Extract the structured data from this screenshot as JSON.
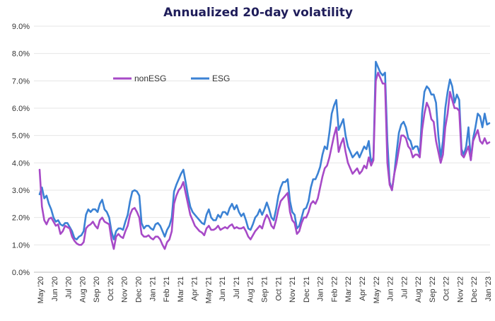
{
  "chart_data": {
    "type": "line",
    "title": "Annualized 20-day volatility",
    "xlabel": "",
    "ylabel": "",
    "ylim": [
      0,
      9
    ],
    "y_ticks": [
      "0.0%",
      "1.0%",
      "2.0%",
      "3.0%",
      "4.0%",
      "5.0%",
      "6.0%",
      "7.0%",
      "8.0%",
      "9.0%"
    ],
    "x_ticks": [
      "May '20",
      "Jun '20",
      "Jul '20",
      "Aug '20",
      "Sep '20",
      "Oct '20",
      "Nov '20",
      "Dec '20",
      "Jan '21",
      "Feb '21",
      "Mar '21",
      "Apr '21",
      "May '21",
      "Jun '21",
      "Jul '21",
      "Aug '21",
      "Sep '21",
      "Oct '21",
      "Nov '21",
      "Dec '21",
      "Jan '22",
      "Feb '22",
      "Mar '22",
      "Apr '22",
      "May '22",
      "Jun '22",
      "Jul '22",
      "Aug '22",
      "Sep '22",
      "Oct '22",
      "Nov '22",
      "Dec '22",
      "Jan '23"
    ],
    "grid": "horizontal",
    "legend_position": "upper-left",
    "series": [
      {
        "name": "nonESG",
        "color": "#a74ac7",
        "values": [
          3.75,
          2.4,
          1.9,
          1.75,
          1.95,
          2.0,
          1.85,
          1.7,
          1.75,
          1.4,
          1.5,
          1.7,
          1.65,
          1.6,
          1.3,
          1.15,
          1.05,
          1.0,
          1.0,
          1.1,
          1.6,
          1.7,
          1.75,
          1.85,
          1.7,
          1.6,
          1.9,
          2.0,
          1.85,
          1.8,
          1.75,
          1.2,
          0.85,
          1.3,
          1.4,
          1.3,
          1.25,
          1.5,
          1.7,
          2.1,
          2.3,
          2.35,
          2.2,
          2.0,
          1.4,
          1.3,
          1.3,
          1.35,
          1.25,
          1.2,
          1.3,
          1.3,
          1.2,
          1.0,
          0.85,
          1.1,
          1.2,
          1.5,
          2.5,
          2.8,
          3.0,
          3.1,
          3.3,
          2.9,
          2.5,
          2.1,
          1.9,
          1.7,
          1.6,
          1.5,
          1.45,
          1.35,
          1.6,
          1.7,
          1.55,
          1.55,
          1.6,
          1.7,
          1.55,
          1.6,
          1.65,
          1.6,
          1.7,
          1.75,
          1.6,
          1.65,
          1.6,
          1.6,
          1.65,
          1.5,
          1.3,
          1.2,
          1.35,
          1.5,
          1.6,
          1.7,
          1.6,
          1.9,
          2.1,
          1.95,
          1.7,
          1.6,
          1.9,
          2.3,
          2.6,
          2.7,
          2.8,
          2.9,
          2.2,
          1.9,
          1.8,
          1.4,
          1.5,
          1.8,
          2.0,
          2.0,
          2.2,
          2.5,
          2.6,
          2.5,
          2.7,
          3.1,
          3.5,
          3.8,
          3.9,
          4.2,
          4.6,
          5.0,
          5.3,
          4.4,
          4.7,
          4.9,
          4.4,
          4.0,
          3.8,
          3.6,
          3.7,
          3.8,
          3.6,
          3.7,
          3.9,
          3.8,
          4.2,
          3.9,
          4.1,
          7.0,
          7.3,
          7.1,
          6.9,
          6.9,
          4.0,
          3.2,
          3.0,
          3.6,
          4.0,
          4.5,
          5.0,
          5.0,
          4.9,
          4.6,
          4.5,
          4.2,
          4.3,
          4.3,
          4.2,
          5.2,
          5.8,
          6.2,
          6.0,
          5.6,
          5.5,
          4.8,
          4.4,
          4.0,
          4.3,
          5.3,
          5.8,
          6.6,
          6.3,
          6.0,
          6.0,
          5.9,
          4.3,
          4.2,
          4.4,
          4.6,
          4.1,
          4.8,
          5.0,
          5.2,
          4.8,
          4.7,
          4.9,
          4.7,
          4.75
        ]
      },
      {
        "name": "ESG",
        "color": "#3b82d4",
        "values": [
          2.85,
          3.1,
          2.7,
          2.8,
          2.5,
          2.3,
          2.0,
          1.85,
          1.9,
          1.75,
          1.7,
          1.8,
          1.8,
          1.65,
          1.5,
          1.25,
          1.2,
          1.3,
          1.35,
          1.5,
          2.1,
          2.3,
          2.2,
          2.3,
          2.3,
          2.2,
          2.5,
          2.65,
          2.3,
          2.2,
          2.0,
          1.5,
          1.2,
          1.5,
          1.6,
          1.6,
          1.55,
          1.85,
          2.1,
          2.6,
          2.95,
          3.0,
          2.95,
          2.8,
          1.8,
          1.6,
          1.7,
          1.7,
          1.6,
          1.55,
          1.75,
          1.8,
          1.7,
          1.5,
          1.3,
          1.55,
          1.7,
          2.0,
          2.95,
          3.2,
          3.4,
          3.6,
          3.75,
          3.3,
          2.8,
          2.4,
          2.2,
          2.1,
          2.0,
          1.9,
          1.8,
          1.75,
          2.1,
          2.3,
          2.0,
          1.9,
          1.9,
          2.1,
          2.0,
          2.2,
          2.2,
          2.1,
          2.35,
          2.5,
          2.3,
          2.45,
          2.2,
          2.05,
          2.15,
          1.9,
          1.6,
          1.55,
          1.75,
          2.0,
          2.1,
          2.3,
          2.1,
          2.3,
          2.55,
          2.3,
          2.0,
          1.9,
          2.3,
          2.8,
          3.1,
          3.3,
          3.3,
          3.4,
          2.6,
          2.2,
          2.1,
          1.6,
          1.7,
          2.0,
          2.3,
          2.35,
          2.6,
          3.1,
          3.4,
          3.4,
          3.6,
          3.85,
          4.3,
          4.6,
          4.5,
          5.1,
          5.8,
          6.1,
          6.3,
          5.2,
          5.4,
          5.6,
          5.0,
          4.6,
          4.4,
          4.2,
          4.3,
          4.4,
          4.2,
          4.4,
          4.6,
          4.5,
          4.8,
          4.0,
          4.2,
          7.7,
          7.5,
          7.3,
          7.2,
          7.3,
          4.8,
          3.3,
          3.0,
          3.6,
          4.4,
          5.1,
          5.4,
          5.5,
          5.3,
          4.9,
          4.8,
          4.5,
          4.6,
          4.6,
          4.3,
          5.8,
          6.6,
          6.8,
          6.7,
          6.5,
          6.5,
          6.2,
          5.0,
          4.2,
          4.8,
          6.0,
          6.6,
          7.05,
          6.8,
          6.2,
          6.5,
          6.3,
          4.5,
          4.3,
          4.6,
          5.3,
          4.1,
          4.9,
          5.3,
          5.8,
          5.7,
          5.3,
          5.8,
          5.4,
          5.45
        ]
      }
    ]
  }
}
